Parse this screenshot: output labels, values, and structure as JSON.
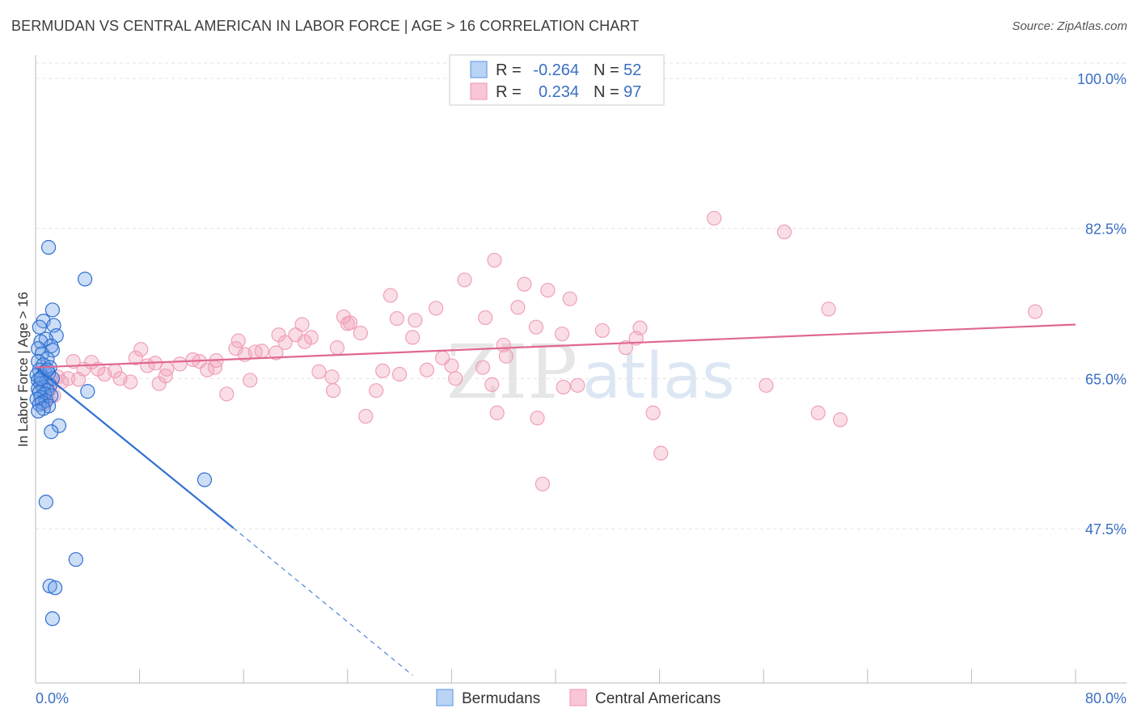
{
  "header": {
    "title": "BERMUDAN VS CENTRAL AMERICAN IN LABOR FORCE | AGE > 16 CORRELATION CHART",
    "source": "Source: ZipAtlas.com"
  },
  "watermark": {
    "zip": "ZIP",
    "atlas": "atlas"
  },
  "colors": {
    "blue": "#6fa0e8",
    "blue_line": "#2f6fd0",
    "pink": "#f0a0b8",
    "pink_line": "#e06890",
    "accent_text": "#3a6fc4"
  },
  "legend": {
    "rows": [
      {
        "r_label": "R =",
        "r_value": "-0.264",
        "n_label": "N =",
        "n_value": "52"
      },
      {
        "r_label": "R =",
        "r_value": "0.234",
        "n_label": "N =",
        "n_value": "97"
      }
    ]
  },
  "chart_data": {
    "type": "scatter",
    "title": "BERMUDAN VS CENTRAL AMERICAN IN LABOR FORCE | AGE > 16 CORRELATION CHART",
    "ylabel": "In Labor Force | Age > 16",
    "xlabel": "",
    "xlim": [
      0,
      80
    ],
    "ylim": [
      30,
      102
    ],
    "x_tick_labels": [
      "0.0%",
      "80.0%"
    ],
    "y_ticks": [
      {
        "value": 100,
        "label": "100.0%"
      },
      {
        "value": 82.5,
        "label": "82.5%"
      },
      {
        "value": 65,
        "label": "65.0%"
      },
      {
        "value": 47.5,
        "label": "47.5%"
      }
    ],
    "series": [
      {
        "name": "Bermudans",
        "r": -0.264,
        "n": 52,
        "trend": {
          "x0": 0,
          "y0": 66.3,
          "x1": 15.2,
          "y1": 47.6,
          "dash_x1": 29,
          "dash_y1": 30.4
        },
        "points": [
          [
            1.0,
            80.3
          ],
          [
            3.8,
            76.6
          ],
          [
            1.3,
            73.0
          ],
          [
            0.6,
            71.7
          ],
          [
            1.4,
            71.2
          ],
          [
            0.3,
            71.0
          ],
          [
            1.6,
            70.0
          ],
          [
            0.8,
            69.6
          ],
          [
            0.4,
            69.3
          ],
          [
            1.2,
            68.8
          ],
          [
            0.2,
            68.5
          ],
          [
            1.3,
            68.3
          ],
          [
            0.5,
            67.9
          ],
          [
            0.9,
            67.3
          ],
          [
            0.2,
            67.0
          ],
          [
            0.6,
            66.6
          ],
          [
            1.1,
            66.3
          ],
          [
            0.3,
            66.0
          ],
          [
            0.7,
            65.8
          ],
          [
            1.0,
            65.6
          ],
          [
            0.1,
            65.4
          ],
          [
            0.5,
            65.2
          ],
          [
            1.3,
            65.0
          ],
          [
            0.2,
            64.8
          ],
          [
            0.8,
            64.6
          ],
          [
            0.4,
            64.4
          ],
          [
            1.1,
            64.2
          ],
          [
            0.6,
            64.0
          ],
          [
            0.2,
            63.8
          ],
          [
            0.9,
            63.6
          ],
          [
            0.3,
            63.4
          ],
          [
            0.7,
            63.2
          ],
          [
            1.2,
            63.0
          ],
          [
            0.4,
            62.8
          ],
          [
            0.1,
            62.6
          ],
          [
            0.8,
            62.4
          ],
          [
            0.5,
            62.2
          ],
          [
            0.3,
            62.0
          ],
          [
            1.0,
            61.8
          ],
          [
            0.6,
            61.5
          ],
          [
            0.2,
            61.2
          ],
          [
            4.0,
            63.5
          ],
          [
            1.8,
            59.5
          ],
          [
            1.2,
            58.8
          ],
          [
            0.8,
            50.6
          ],
          [
            13.0,
            53.2
          ],
          [
            3.1,
            43.9
          ],
          [
            1.1,
            40.8
          ],
          [
            1.5,
            40.6
          ],
          [
            1.3,
            37.0
          ],
          [
            0.4,
            65.0
          ],
          [
            0.9,
            66.0
          ]
        ]
      },
      {
        "name": "Central Americans",
        "r": 0.234,
        "n": 97,
        "trend": {
          "x0": 0,
          "y0": 66.3,
          "x1": 80,
          "y1": 71.3
        },
        "points": [
          [
            52.2,
            83.7
          ],
          [
            57.6,
            82.1
          ],
          [
            35.3,
            78.8
          ],
          [
            33.0,
            76.5
          ],
          [
            37.6,
            76.0
          ],
          [
            27.3,
            74.7
          ],
          [
            39.4,
            75.3
          ],
          [
            41.1,
            74.3
          ],
          [
            30.8,
            73.2
          ],
          [
            37.1,
            73.3
          ],
          [
            61.0,
            73.1
          ],
          [
            76.9,
            72.8
          ],
          [
            23.7,
            72.2
          ],
          [
            27.8,
            72.0
          ],
          [
            29.2,
            71.8
          ],
          [
            34.6,
            72.1
          ],
          [
            24.2,
            71.5
          ],
          [
            24.0,
            71.4
          ],
          [
            20.5,
            71.3
          ],
          [
            38.5,
            71.0
          ],
          [
            43.6,
            70.6
          ],
          [
            46.5,
            70.9
          ],
          [
            25.0,
            70.3
          ],
          [
            40.5,
            70.2
          ],
          [
            46.2,
            69.7
          ],
          [
            20.0,
            70.1
          ],
          [
            18.7,
            70.1
          ],
          [
            15.6,
            69.4
          ],
          [
            21.2,
            69.8
          ],
          [
            29.0,
            69.8
          ],
          [
            20.7,
            69.3
          ],
          [
            19.2,
            69.2
          ],
          [
            36.0,
            68.9
          ],
          [
            45.4,
            68.6
          ],
          [
            23.2,
            68.6
          ],
          [
            16.9,
            68.1
          ],
          [
            15.4,
            68.5
          ],
          [
            17.4,
            68.2
          ],
          [
            8.1,
            68.4
          ],
          [
            18.5,
            68.0
          ],
          [
            16.1,
            67.8
          ],
          [
            36.2,
            67.6
          ],
          [
            7.7,
            67.4
          ],
          [
            31.3,
            67.4
          ],
          [
            12.1,
            67.2
          ],
          [
            13.9,
            67.1
          ],
          [
            12.6,
            67.0
          ],
          [
            2.9,
            67.0
          ],
          [
            4.3,
            66.9
          ],
          [
            9.2,
            66.8
          ],
          [
            11.1,
            66.7
          ],
          [
            32.0,
            66.5
          ],
          [
            34.4,
            66.3
          ],
          [
            8.6,
            66.5
          ],
          [
            13.8,
            66.3
          ],
          [
            3.7,
            66.1
          ],
          [
            10.1,
            66.1
          ],
          [
            4.8,
            66.1
          ],
          [
            13.2,
            66.0
          ],
          [
            30.1,
            66.0
          ],
          [
            6.1,
            65.9
          ],
          [
            26.7,
            65.9
          ],
          [
            21.8,
            65.8
          ],
          [
            28.0,
            65.5
          ],
          [
            5.3,
            65.5
          ],
          [
            10.0,
            65.3
          ],
          [
            22.8,
            65.2
          ],
          [
            32.3,
            65.0
          ],
          [
            1.7,
            65.2
          ],
          [
            2.5,
            65.0
          ],
          [
            3.3,
            64.9
          ],
          [
            2.0,
            64.6
          ],
          [
            1.2,
            64.8
          ],
          [
            6.5,
            65.0
          ],
          [
            16.5,
            64.8
          ],
          [
            7.3,
            64.6
          ],
          [
            9.5,
            64.4
          ],
          [
            35.1,
            64.3
          ],
          [
            41.7,
            64.2
          ],
          [
            56.2,
            64.2
          ],
          [
            40.6,
            64.0
          ],
          [
            22.9,
            63.6
          ],
          [
            26.2,
            63.6
          ],
          [
            14.7,
            63.2
          ],
          [
            1.4,
            63.0
          ],
          [
            0.9,
            62.6
          ],
          [
            0.7,
            62.1
          ],
          [
            35.5,
            61.0
          ],
          [
            47.5,
            61.0
          ],
          [
            60.2,
            61.0
          ],
          [
            25.4,
            60.6
          ],
          [
            38.6,
            60.4
          ],
          [
            61.9,
            60.2
          ],
          [
            48.1,
            56.3
          ],
          [
            39.0,
            52.7
          ],
          [
            1.0,
            63.6
          ],
          [
            0.8,
            64.0
          ]
        ]
      }
    ]
  },
  "bottom_legend": {
    "items": [
      {
        "label": "Bermudans"
      },
      {
        "label": "Central Americans"
      }
    ]
  }
}
